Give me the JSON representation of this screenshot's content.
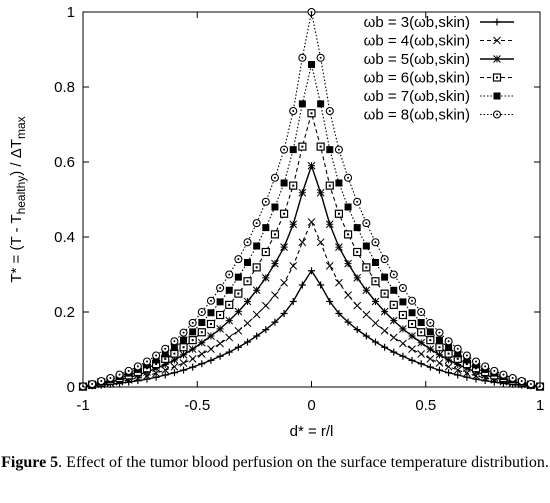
{
  "caption": {
    "label": "Figure 5",
    "text": ". Effect of the tumor blood perfusion on the surface temperature distribution."
  },
  "chart_data": {
    "type": "line",
    "xlabel": "d* = r/l",
    "ylabel": "T* = (T - T_healthy) / ΔT_max",
    "xlim": [
      -1,
      1
    ],
    "ylim": [
      0,
      1
    ],
    "x_ticks": [
      "-1",
      "-0.5",
      "0",
      "0.5",
      "1"
    ],
    "y_ticks": [
      "0",
      "0.2",
      "0.4",
      "0.6",
      "0.8",
      "1"
    ],
    "x_tick_values": [
      -1,
      -0.5,
      0,
      0.5,
      1
    ],
    "y_tick_values": [
      0,
      0.2,
      0.4,
      0.6,
      0.8,
      1
    ],
    "grid": false,
    "legend_position": "top-right",
    "x": [
      -1,
      -0.96,
      -0.92,
      -0.88,
      -0.84,
      -0.8,
      -0.76,
      -0.72,
      -0.68,
      -0.64,
      -0.6,
      -0.56,
      -0.52,
      -0.48,
      -0.44,
      -0.4,
      -0.36,
      -0.32,
      -0.28,
      -0.24,
      -0.2,
      -0.16,
      -0.12,
      -0.08,
      -0.04,
      0,
      0.04,
      0.08,
      0.12,
      0.16,
      0.2,
      0.24,
      0.28,
      0.32,
      0.36,
      0.4,
      0.44,
      0.48,
      0.52,
      0.56,
      0.6,
      0.64,
      0.68,
      0.72,
      0.76,
      0.8,
      0.84,
      0.88,
      0.92,
      0.96,
      1
    ],
    "series": [
      {
        "name": "ωb = 3(ωb,skin)",
        "peak": 0.31,
        "line": "solid",
        "marker": "plus",
        "values": [
          0.001,
          0.003,
          0.005,
          0.007,
          0.01,
          0.013,
          0.017,
          0.021,
          0.026,
          0.032,
          0.038,
          0.045,
          0.053,
          0.062,
          0.071,
          0.082,
          0.093,
          0.106,
          0.12,
          0.136,
          0.153,
          0.173,
          0.196,
          0.228,
          0.272,
          0.31,
          0.272,
          0.228,
          0.196,
          0.173,
          0.153,
          0.136,
          0.12,
          0.106,
          0.093,
          0.082,
          0.071,
          0.062,
          0.053,
          0.045,
          0.038,
          0.032,
          0.026,
          0.021,
          0.017,
          0.013,
          0.01,
          0.007,
          0.005,
          0.003,
          0.001
        ]
      },
      {
        "name": "ωb = 4(ωb,skin)",
        "peak": 0.44,
        "line": "dashed",
        "marker": "cross",
        "values": [
          0.001,
          0.004,
          0.007,
          0.01,
          0.014,
          0.019,
          0.024,
          0.03,
          0.037,
          0.045,
          0.054,
          0.064,
          0.075,
          0.088,
          0.101,
          0.116,
          0.132,
          0.15,
          0.17,
          0.193,
          0.217,
          0.245,
          0.278,
          0.323,
          0.386,
          0.44,
          0.386,
          0.323,
          0.278,
          0.245,
          0.217,
          0.193,
          0.17,
          0.15,
          0.132,
          0.116,
          0.101,
          0.088,
          0.075,
          0.064,
          0.054,
          0.045,
          0.037,
          0.03,
          0.024,
          0.019,
          0.014,
          0.01,
          0.007,
          0.004,
          0.001
        ]
      },
      {
        "name": "ωb = 5(ωb,skin)",
        "peak": 0.59,
        "line": "solid",
        "marker": "star",
        "values": [
          0.001,
          0.005,
          0.01,
          0.014,
          0.019,
          0.025,
          0.032,
          0.04,
          0.05,
          0.06,
          0.072,
          0.086,
          0.101,
          0.118,
          0.136,
          0.155,
          0.177,
          0.201,
          0.228,
          0.258,
          0.291,
          0.329,
          0.373,
          0.434,
          0.518,
          0.59,
          0.518,
          0.434,
          0.373,
          0.329,
          0.291,
          0.258,
          0.228,
          0.201,
          0.177,
          0.155,
          0.136,
          0.118,
          0.101,
          0.086,
          0.072,
          0.06,
          0.05,
          0.04,
          0.032,
          0.025,
          0.019,
          0.014,
          0.01,
          0.005,
          0.001
        ]
      },
      {
        "name": "ωb = 6(ωb,skin)",
        "peak": 0.73,
        "line": "dashed",
        "marker": "square-open",
        "values": [
          0.001,
          0.006,
          0.012,
          0.017,
          0.024,
          0.031,
          0.04,
          0.05,
          0.061,
          0.075,
          0.089,
          0.106,
          0.125,
          0.146,
          0.168,
          0.192,
          0.219,
          0.249,
          0.282,
          0.319,
          0.36,
          0.407,
          0.462,
          0.537,
          0.641,
          0.73,
          0.641,
          0.537,
          0.462,
          0.407,
          0.36,
          0.319,
          0.282,
          0.249,
          0.219,
          0.192,
          0.168,
          0.146,
          0.125,
          0.106,
          0.089,
          0.075,
          0.061,
          0.05,
          0.04,
          0.031,
          0.024,
          0.017,
          0.012,
          0.006,
          0.001
        ]
      },
      {
        "name": "ωb = 7(ωb,skin)",
        "peak": 0.86,
        "line": "dotted",
        "marker": "square-filled",
        "values": [
          0.002,
          0.007,
          0.014,
          0.02,
          0.028,
          0.037,
          0.047,
          0.059,
          0.072,
          0.088,
          0.105,
          0.125,
          0.147,
          0.172,
          0.198,
          0.227,
          0.258,
          0.293,
          0.332,
          0.376,
          0.425,
          0.48,
          0.544,
          0.633,
          0.755,
          0.86,
          0.755,
          0.633,
          0.544,
          0.48,
          0.425,
          0.376,
          0.332,
          0.293,
          0.258,
          0.227,
          0.198,
          0.172,
          0.147,
          0.125,
          0.105,
          0.088,
          0.072,
          0.059,
          0.047,
          0.037,
          0.028,
          0.02,
          0.014,
          0.007,
          0.002
        ]
      },
      {
        "name": "ωb = 8(ωb,skin)",
        "peak": 1.0,
        "line": "dotted",
        "marker": "circle-dot",
        "values": [
          0.002,
          0.008,
          0.016,
          0.024,
          0.033,
          0.043,
          0.055,
          0.068,
          0.084,
          0.102,
          0.122,
          0.145,
          0.171,
          0.2,
          0.23,
          0.264,
          0.3,
          0.341,
          0.386,
          0.437,
          0.494,
          0.558,
          0.633,
          0.736,
          0.878,
          1.0,
          0.878,
          0.736,
          0.633,
          0.558,
          0.494,
          0.437,
          0.386,
          0.341,
          0.3,
          0.264,
          0.23,
          0.2,
          0.171,
          0.145,
          0.122,
          0.102,
          0.084,
          0.068,
          0.055,
          0.043,
          0.033,
          0.024,
          0.016,
          0.008,
          0.002
        ]
      }
    ]
  }
}
